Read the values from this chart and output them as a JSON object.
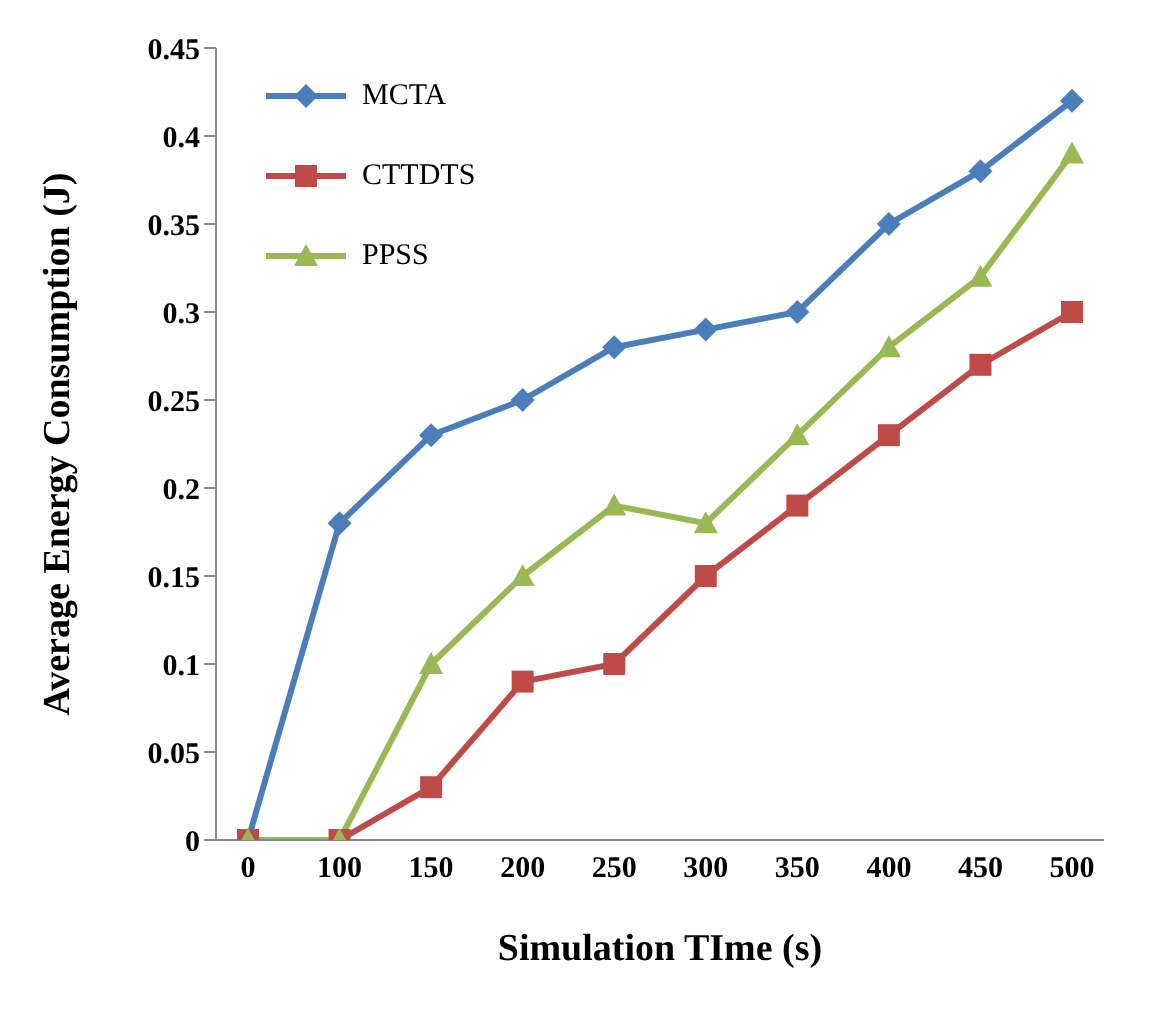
{
  "chart_data": {
    "type": "line",
    "xlabel": "Simulation TIme (s)",
    "ylabel": "Average Energy Consumption (J)",
    "categories": [
      "0",
      "100",
      "150",
      "200",
      "250",
      "300",
      "350",
      "400",
      "450",
      "500"
    ],
    "series": [
      {
        "name": "MCTA",
        "color": "#4a7ebb",
        "marker": "diamond",
        "values": [
          0,
          0.18,
          0.23,
          0.25,
          0.28,
          0.29,
          0.3,
          0.35,
          0.38,
          0.42
        ]
      },
      {
        "name": "CTTDTS",
        "color": "#be4b48",
        "marker": "square",
        "values": [
          0,
          0,
          0.03,
          0.09,
          0.1,
          0.15,
          0.19,
          0.23,
          0.27,
          0.3
        ]
      },
      {
        "name": "PPSS",
        "color": "#98b954",
        "marker": "triangle",
        "values": [
          0,
          0,
          0.1,
          0.15,
          0.19,
          0.18,
          0.23,
          0.28,
          0.32,
          0.39
        ]
      }
    ],
    "ylim": [
      0,
      0.45
    ],
    "yticks": [
      0,
      0.05,
      0.1,
      0.15,
      0.2,
      0.25,
      0.3,
      0.35,
      0.4,
      0.45
    ],
    "grid": false,
    "legend": "top left",
    "line_style": "solid"
  }
}
